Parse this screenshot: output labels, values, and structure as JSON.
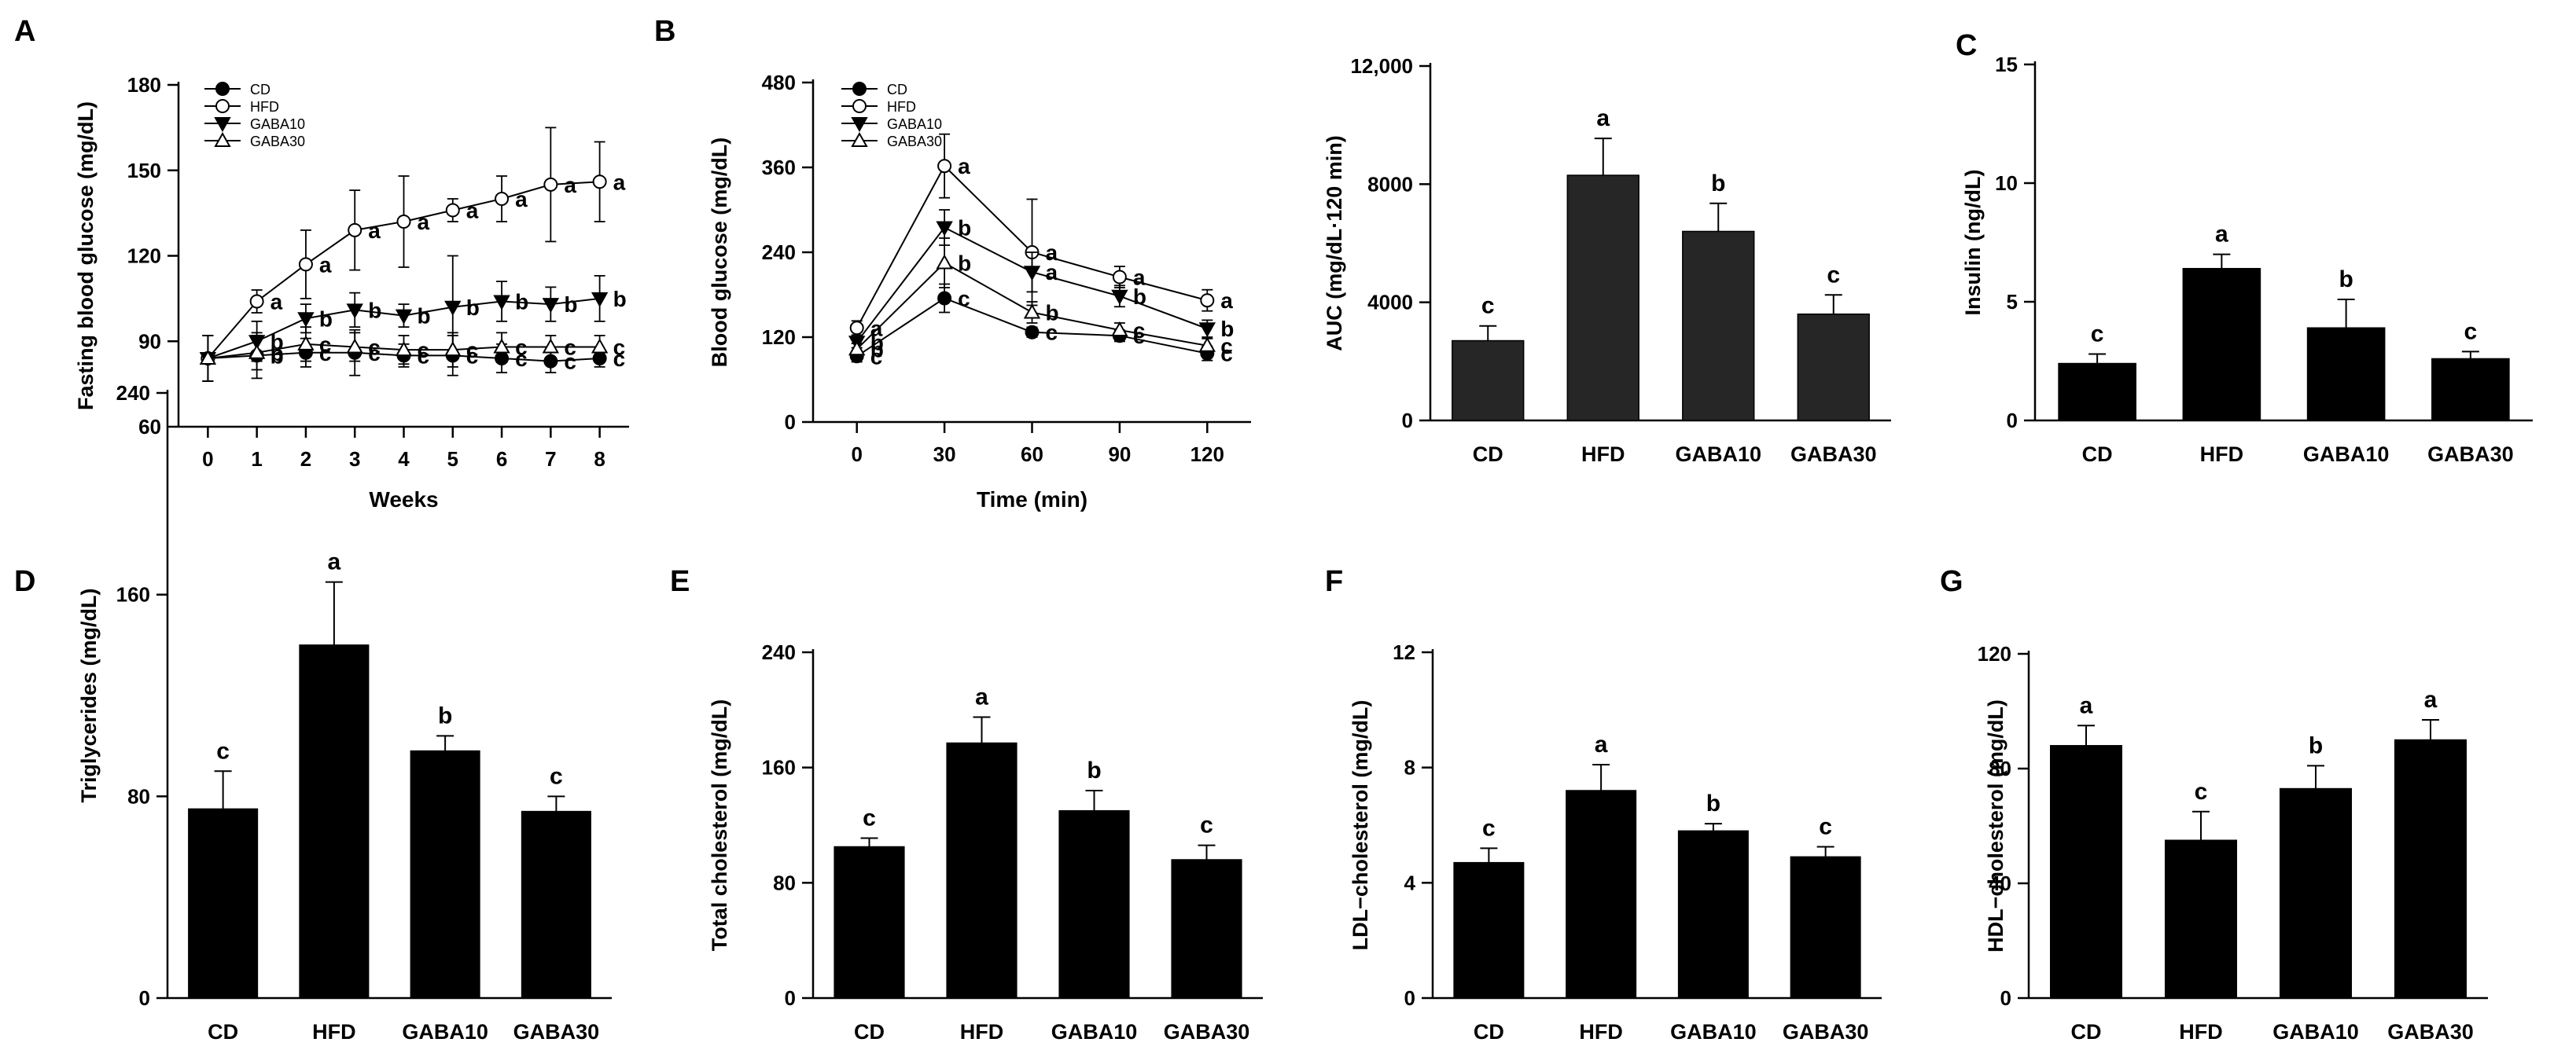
{
  "colors": {
    "ink": "#000000",
    "hollow": "#ffffff",
    "auc_bar": "#262626",
    "paper": "#ffffff"
  },
  "charts": [
    {
      "id": "fasting",
      "type": "line",
      "panel": "A",
      "ylabel": "Fasting blood glucose (mg/dL)",
      "xlabel": "Weeks",
      "ylim": [
        60,
        180
      ],
      "yticks": [
        60,
        90,
        120,
        150,
        180
      ],
      "ytick_labels": [
        "60",
        "90",
        "120",
        "150",
        "180"
      ],
      "xlim": [
        -0.6,
        8.6
      ],
      "x": [
        0,
        1,
        2,
        3,
        4,
        5,
        6,
        7,
        8
      ],
      "x_labels": [
        "0",
        "1",
        "2",
        "3",
        "4",
        "5",
        "6",
        "7",
        "8"
      ],
      "legend": [
        "CD",
        "HFD",
        "GABA10",
        "GABA30"
      ],
      "series": [
        {
          "name": "CD",
          "marker": "circle-filled",
          "values": [
            84,
            85,
            86,
            86,
            85,
            85,
            84,
            83,
            84
          ],
          "errors": [
            8,
            8,
            5,
            8,
            4,
            7,
            5,
            4,
            3
          ],
          "letters": [
            "",
            "b",
            "c",
            "c",
            "c",
            "c",
            "c",
            "c",
            "c"
          ]
        },
        {
          "name": "HFD",
          "marker": "circle-open",
          "values": [
            84,
            104,
            117,
            129,
            132,
            136,
            140,
            145,
            146
          ],
          "errors": [
            8,
            4,
            12,
            14,
            16,
            4,
            8,
            20,
            14
          ],
          "letters": [
            "",
            "a",
            "a",
            "a",
            "a",
            "a",
            "a",
            "a",
            "a"
          ]
        },
        {
          "name": "GABA10",
          "marker": "triangle-down-filled",
          "values": [
            84,
            90,
            98,
            101,
            99,
            102,
            104,
            103,
            105
          ],
          "errors": [
            8,
            7,
            5,
            6,
            4,
            18,
            7,
            6,
            8
          ],
          "letters": [
            "",
            "b",
            "b",
            "b",
            "b",
            "b",
            "b",
            "b",
            "b"
          ]
        },
        {
          "name": "GABA30",
          "marker": "triangle-up-open",
          "values": [
            84,
            86,
            89,
            88,
            87,
            87,
            88,
            88,
            88
          ],
          "errors": [
            8,
            6,
            6,
            5,
            5,
            6,
            5,
            4,
            4
          ],
          "letters": [
            "",
            "b",
            "c",
            "c",
            "c",
            "c",
            "c",
            "c",
            "c"
          ]
        }
      ]
    },
    {
      "id": "ogtt",
      "type": "line",
      "panel": "B",
      "ylabel": "Blood glucose (mg/dL)",
      "xlabel": "Time (min)",
      "ylim": [
        0,
        480
      ],
      "yticks": [
        0,
        120,
        240,
        360,
        480
      ],
      "ytick_labels": [
        "0",
        "120",
        "240",
        "360",
        "480"
      ],
      "xlim": [
        -15,
        135
      ],
      "x": [
        0,
        30,
        60,
        90,
        120
      ],
      "x_labels": [
        "0",
        "30",
        "60",
        "90",
        "120"
      ],
      "legend": [
        "CD",
        "HFD",
        "GABA10",
        "GABA30"
      ],
      "series": [
        {
          "name": "CD",
          "marker": "circle-filled",
          "values": [
            93,
            175,
            127,
            122,
            97
          ],
          "errors": [
            8,
            20,
            7,
            8,
            10
          ],
          "letters": [
            "c",
            "c",
            "c",
            "c",
            "c"
          ]
        },
        {
          "name": "HFD",
          "marker": "circle-open",
          "values": [
            133,
            362,
            240,
            205,
            172
          ],
          "errors": [
            10,
            45,
            75,
            15,
            15
          ],
          "letters": [
            "a",
            "a",
            "a",
            "a",
            "a"
          ]
        },
        {
          "name": "GABA10",
          "marker": "triangle-down-filled",
          "values": [
            113,
            275,
            212,
            178,
            132
          ],
          "errors": [
            8,
            25,
            28,
            15,
            12
          ],
          "letters": [
            "b",
            "b",
            "a",
            "b",
            "b"
          ]
        },
        {
          "name": "GABA30",
          "marker": "triangle-up-open",
          "values": [
            103,
            225,
            155,
            130,
            108
          ],
          "errors": [
            8,
            35,
            15,
            10,
            10
          ],
          "letters": [
            "b",
            "b",
            "b",
            "c",
            "c"
          ]
        }
      ]
    },
    {
      "id": "auc",
      "type": "bar",
      "panel": "",
      "ylabel": "AUC (mg/dL·120 min)",
      "ylim": [
        0,
        12000
      ],
      "yticks": [
        0,
        4000,
        8000,
        12000
      ],
      "ytick_labels": [
        "0",
        "4000",
        "8000",
        "12,000"
      ],
      "categories": [
        "CD",
        "HFD",
        "GABA10",
        "GABA30"
      ],
      "values": [
        2700,
        8300,
        6400,
        3600
      ],
      "errors": [
        500,
        1250,
        950,
        650
      ],
      "letters": [
        "c",
        "a",
        "b",
        "c"
      ]
    },
    {
      "id": "insulin",
      "type": "bar",
      "panel": "C",
      "ylabel": "Insulin (ng/dL)",
      "ylim": [
        0,
        15
      ],
      "yticks": [
        0,
        5,
        10,
        15
      ],
      "ytick_labels": [
        "0",
        "5",
        "10",
        "15"
      ],
      "categories": [
        "CD",
        "HFD",
        "GABA10",
        "GABA30"
      ],
      "values": [
        2.4,
        6.4,
        3.9,
        2.6
      ],
      "errors": [
        0.4,
        0.6,
        1.2,
        0.3
      ],
      "letters": [
        "c",
        "a",
        "b",
        "c"
      ]
    },
    {
      "id": "tg",
      "type": "bar",
      "panel": "D",
      "ylabel": "Triglycerides (mg/dL)",
      "ylim": [
        0,
        240
      ],
      "yticks": [
        0,
        80,
        160,
        240
      ],
      "ytick_labels": [
        "0",
        "80",
        "160",
        "240"
      ],
      "categories": [
        "CD",
        "HFD",
        "GABA10",
        "GABA30"
      ],
      "values": [
        75,
        140,
        98,
        74
      ],
      "errors": [
        15,
        25,
        6,
        6
      ],
      "letters": [
        "c",
        "a",
        "b",
        "c"
      ]
    },
    {
      "id": "tc",
      "type": "bar",
      "panel": "E",
      "ylabel": "Total cholesterol (mg/dL)",
      "ylim": [
        0,
        240
      ],
      "yticks": [
        0,
        80,
        160,
        240
      ],
      "ytick_labels": [
        "0",
        "80",
        "160",
        "240"
      ],
      "categories": [
        "CD",
        "HFD",
        "GABA10",
        "GABA30"
      ],
      "values": [
        105,
        177,
        130,
        96
      ],
      "errors": [
        6,
        18,
        14,
        10
      ],
      "letters": [
        "c",
        "a",
        "b",
        "c"
      ]
    },
    {
      "id": "ldl",
      "type": "bar",
      "panel": "F",
      "ylabel": "LDL−cholesterol (mg/dL)",
      "ylim": [
        0,
        12
      ],
      "yticks": [
        0,
        4,
        8,
        12
      ],
      "ytick_labels": [
        "0",
        "4",
        "8",
        "12"
      ],
      "categories": [
        "CD",
        "HFD",
        "GABA10",
        "GABA30"
      ],
      "values": [
        4.7,
        7.2,
        5.8,
        4.9
      ],
      "errors": [
        0.5,
        0.9,
        0.25,
        0.35
      ],
      "letters": [
        "c",
        "a",
        "b",
        "c"
      ]
    },
    {
      "id": "hdl",
      "type": "bar",
      "panel": "G",
      "ylabel": "HDL−cholesterol (mg/dL)",
      "ylim": [
        0,
        120
      ],
      "yticks": [
        0,
        40,
        80,
        120
      ],
      "ytick_labels": [
        "0",
        "40",
        "80",
        "120"
      ],
      "categories": [
        "CD",
        "HFD",
        "GABA10",
        "GABA30"
      ],
      "values": [
        88,
        55,
        73,
        90
      ],
      "errors": [
        7,
        10,
        8,
        7
      ],
      "letters": [
        "a",
        "c",
        "b",
        "a"
      ]
    }
  ]
}
